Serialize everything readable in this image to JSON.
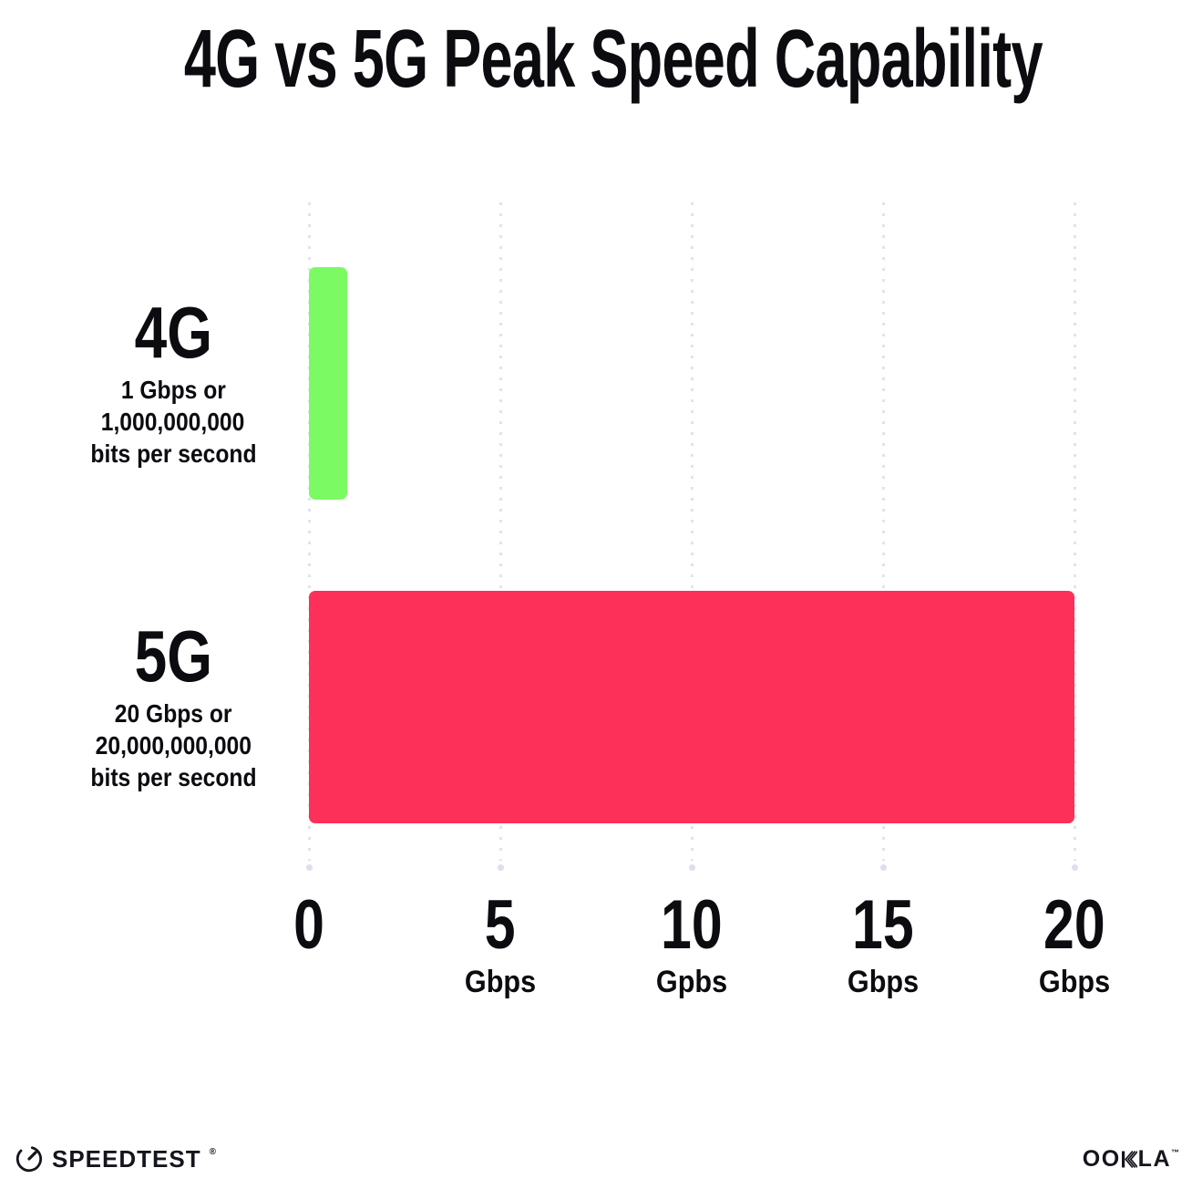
{
  "title": "4G vs 5G Peak Speed Capability",
  "chart_data": {
    "type": "bar",
    "orientation": "horizontal",
    "title": "4G vs 5G Peak Speed Capability",
    "categories": [
      "4G",
      "5G"
    ],
    "values": [
      1,
      20
    ],
    "value_unit": "Gbps",
    "xlim": [
      0,
      20
    ],
    "x_ticks": [
      {
        "value": 0,
        "number": "0",
        "unit": ""
      },
      {
        "value": 5,
        "number": "5",
        "unit": "Gbps"
      },
      {
        "value": 10,
        "number": "10",
        "unit": "Gpbs"
      },
      {
        "value": 15,
        "number": "15",
        "unit": "Gbps"
      },
      {
        "value": 20,
        "number": "20",
        "unit": "Gbps"
      }
    ],
    "grid": "vertical dotted gridlines at each tick, round end dot at bottom",
    "legend": "none",
    "bar_colors": [
      "#7cfa64",
      "#fc3058"
    ]
  },
  "rows": [
    {
      "label": "4G",
      "sublabel_lines": [
        "1 Gbps or",
        "1,000,000,000",
        "bits per second"
      ]
    },
    {
      "label": "5G",
      "sublabel_lines": [
        "20 Gbps or",
        "20,000,000,000",
        "bits per second"
      ]
    }
  ],
  "footer": {
    "speedtest_text": "SPEEDTEST",
    "speedtest_mark": "®",
    "ookla_left": "OO",
    "ookla_right": "LA",
    "ookla_mark": "™"
  },
  "colors": {
    "bar_4g": "#7cfa64",
    "bar_5g": "#fc3058",
    "text": "#0b0b10",
    "gridline": "#e1e3ef",
    "grid_end_dot": "#dcdfec",
    "background": "#ffffff"
  }
}
